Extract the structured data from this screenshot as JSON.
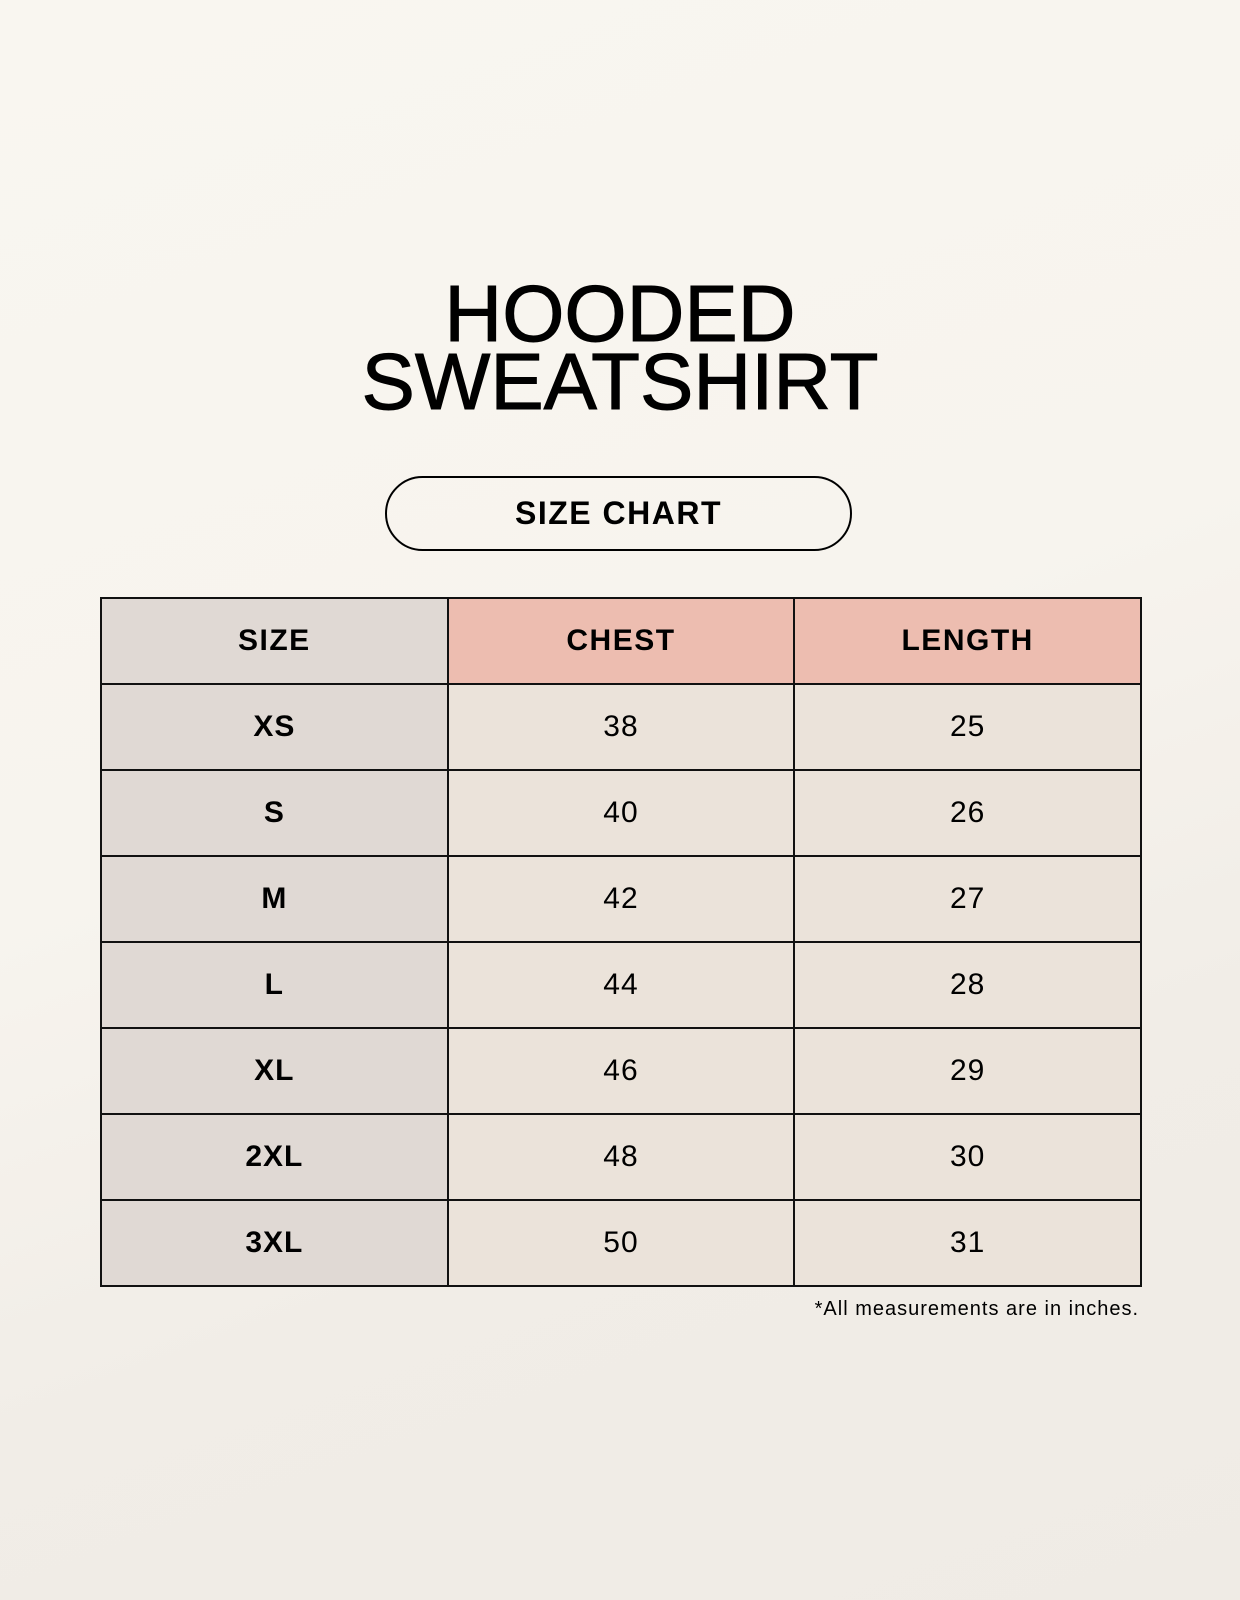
{
  "title_lines": [
    "HOODED",
    "SWEATSHIRT"
  ],
  "badge": "SIZE CHART",
  "table": {
    "headers": [
      "SIZE",
      "CHEST",
      "LENGTH"
    ],
    "rows": [
      [
        "XS",
        "38",
        "25"
      ],
      [
        "S",
        "40",
        "26"
      ],
      [
        "M",
        "42",
        "27"
      ],
      [
        "L",
        "44",
        "28"
      ],
      [
        "XL",
        "46",
        "29"
      ],
      [
        "2XL",
        "48",
        "30"
      ],
      [
        "3XL",
        "50",
        "31"
      ]
    ]
  },
  "footnote": "*All measurements are in inches.",
  "colors": {
    "background": "#f8f5ef",
    "size_column": "#e0d9d4",
    "header_accent": "#edbdb0",
    "cell": "#ebe3da"
  }
}
